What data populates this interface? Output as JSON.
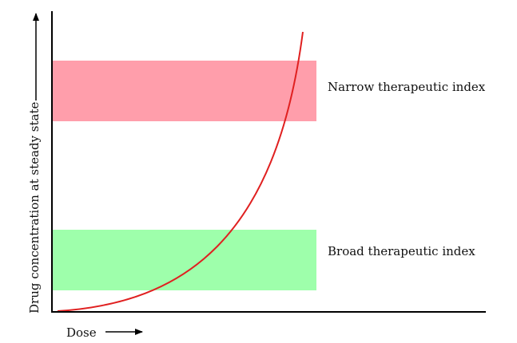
{
  "diagram": {
    "ylabel": "Drug concentration at steady state",
    "xlabel": "Dose",
    "bands": [
      {
        "label": "Narrow therapeutic index",
        "color": "#ff9eab"
      },
      {
        "label": "Broad therapeutic index",
        "color": "#9effab"
      }
    ],
    "curve_color": "#e02020",
    "axis_color": "#000000"
  }
}
